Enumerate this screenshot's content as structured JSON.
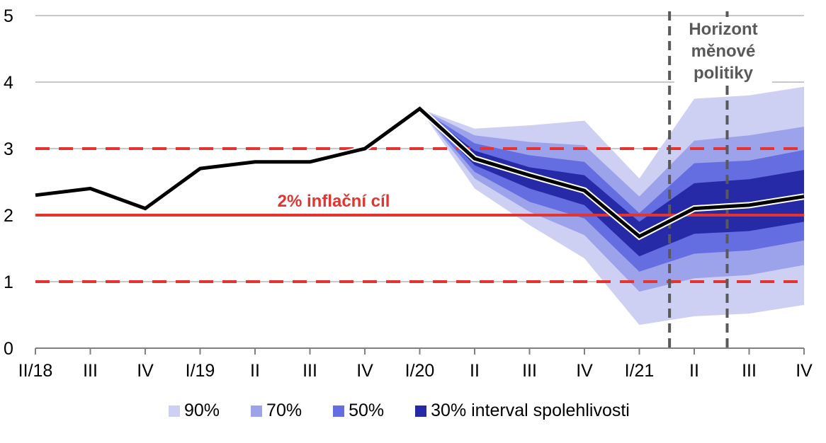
{
  "chart_data": {
    "type": "area",
    "categories": [
      "II/18",
      "III",
      "IV",
      "I/19",
      "II",
      "III",
      "IV",
      "I/20",
      "II",
      "III",
      "IV",
      "I/21",
      "II",
      "III",
      "IV"
    ],
    "ylim": [
      0,
      5
    ],
    "yticks": [
      "0",
      "1",
      "2",
      "3",
      "4",
      "5"
    ],
    "grid": true,
    "series": [
      {
        "name": "",
        "values": [
          2.3,
          2.4,
          2.1,
          2.7,
          2.8,
          2.8,
          3.0,
          3.6,
          2.85,
          2.6,
          2.37,
          1.68,
          2.1,
          2.15,
          2.28
        ]
      }
    ],
    "bands_start_index": 7,
    "bands": [
      {
        "name": "90%",
        "color": "#cdd0f3",
        "lower": [
          3.6,
          2.4,
          1.85,
          1.35,
          0.35,
          0.48,
          0.52,
          0.65
        ],
        "upper": [
          3.6,
          3.3,
          3.35,
          3.42,
          2.55,
          3.75,
          3.8,
          3.93
        ]
      },
      {
        "name": "70%",
        "color": "#9da3ea",
        "lower": [
          3.6,
          2.55,
          2.05,
          1.7,
          0.85,
          1.05,
          1.1,
          1.25
        ],
        "upper": [
          3.6,
          3.2,
          3.1,
          3.05,
          2.28,
          3.12,
          3.2,
          3.33
        ]
      },
      {
        "name": "50%",
        "color": "#656ee0",
        "lower": [
          3.6,
          2.65,
          2.2,
          1.95,
          1.15,
          1.42,
          1.47,
          1.62
        ],
        "upper": [
          3.6,
          3.08,
          2.9,
          2.8,
          2.03,
          2.78,
          2.82,
          2.98
        ]
      },
      {
        "name": "30% interval spolehlivosti",
        "color": "#262aa6",
        "lower": [
          3.6,
          2.75,
          2.4,
          2.15,
          1.38,
          1.72,
          1.76,
          1.9
        ],
        "upper": [
          3.6,
          2.97,
          2.72,
          2.6,
          1.9,
          2.48,
          2.54,
          2.68
        ]
      }
    ],
    "target": {
      "label": "2% inflační cíl",
      "value": 2,
      "color": "#e3342f"
    },
    "tolerance": {
      "values": [
        1,
        3
      ],
      "color": "#e3342f"
    },
    "horizon": {
      "label_lines": [
        "Horizont",
        "měnové",
        "politiky"
      ],
      "x_positions": [
        11.55,
        12.6
      ],
      "color": "#595959"
    }
  },
  "legend": {
    "items": [
      {
        "label": "90%",
        "color": "#cdd0f3"
      },
      {
        "label": "70%",
        "color": "#9da3ea"
      },
      {
        "label": "50%",
        "color": "#656ee0"
      },
      {
        "label": "30% interval spolehlivosti",
        "color": "#262aa6"
      }
    ]
  }
}
